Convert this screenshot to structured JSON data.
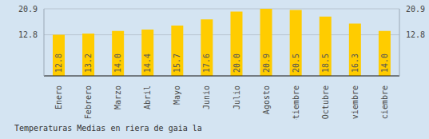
{
  "chart_data": {
    "type": "bar",
    "title": "Temperaturas Medias en riera de gaia la",
    "categories": [
      "Enero",
      "Febrero",
      "Marzo",
      "Abril",
      "Mayo",
      "Junio",
      "Julio",
      "Agosto",
      "Septiembre",
      "Octubre",
      "Noviembre",
      "Diciembre"
    ],
    "values": [
      12.8,
      13.2,
      14.0,
      14.4,
      15.7,
      17.6,
      20.0,
      20.9,
      20.5,
      18.5,
      16.3,
      14.0
    ],
    "value_labels": [
      "12.8",
      "13.2",
      "14.0",
      "14.4",
      "15.7",
      "17.6",
      "20.0",
      "20.9",
      "20.5",
      "18.5",
      "16.3",
      "14.0"
    ],
    "color": "#ffcc00",
    "ylim": [
      0,
      20.9
    ],
    "yticks": [
      12.8,
      20.9
    ],
    "grid": true,
    "data_labels": true
  }
}
